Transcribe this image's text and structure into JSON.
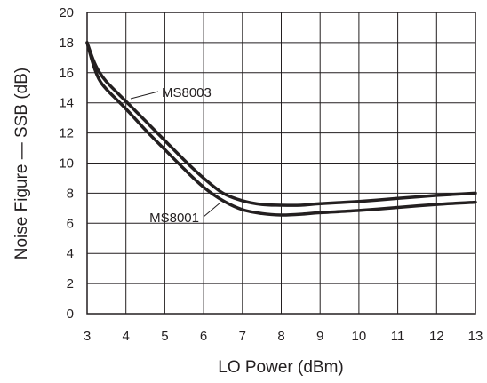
{
  "chart_data": {
    "type": "line",
    "xlabel": "LO Power (dBm)",
    "ylabel": "Noise Figure — SSB (dB)",
    "xlim": [
      3,
      13
    ],
    "ylim": [
      0,
      20
    ],
    "x_ticks": [
      3,
      4,
      5,
      6,
      7,
      8,
      9,
      10,
      11,
      12,
      13
    ],
    "y_ticks": [
      0,
      2,
      4,
      6,
      8,
      10,
      12,
      14,
      16,
      18,
      20
    ],
    "grid": true,
    "series": [
      {
        "name": "MS8003",
        "x": [
          3.0,
          3.15,
          3.3,
          3.5,
          4.0,
          4.5,
          5.0,
          5.5,
          6.0,
          6.5,
          7.0,
          7.5,
          8.0,
          8.5,
          9.0,
          10.0,
          11.0,
          12.0,
          13.0
        ],
        "y": [
          18.0,
          16.9,
          16.1,
          15.4,
          14.1,
          12.8,
          11.5,
          10.2,
          9.0,
          8.0,
          7.5,
          7.25,
          7.2,
          7.2,
          7.3,
          7.45,
          7.65,
          7.85,
          8.0
        ]
      },
      {
        "name": "MS8001",
        "x": [
          3.0,
          3.15,
          3.3,
          3.5,
          4.0,
          4.5,
          5.0,
          5.5,
          6.0,
          6.5,
          7.0,
          7.5,
          8.0,
          8.5,
          9.0,
          10.0,
          11.0,
          12.0,
          13.0
        ],
        "y": [
          18.0,
          16.6,
          15.6,
          14.9,
          13.6,
          12.2,
          10.9,
          9.6,
          8.4,
          7.5,
          6.9,
          6.65,
          6.55,
          6.6,
          6.7,
          6.85,
          7.05,
          7.25,
          7.4
        ]
      }
    ],
    "annotations": [
      {
        "text": "MS8003",
        "series": "MS8003"
      },
      {
        "text": "MS8001",
        "series": "MS8001"
      }
    ]
  }
}
